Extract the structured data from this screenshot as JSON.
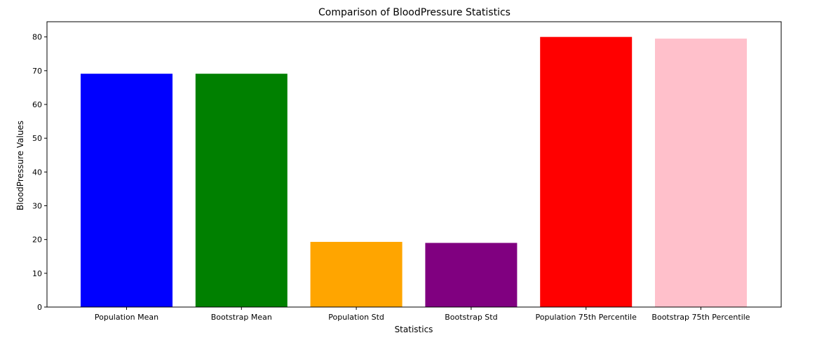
{
  "chart_data": {
    "type": "bar",
    "title": "Comparison of BloodPressure Statistics",
    "xlabel": "Statistics",
    "ylabel": "BloodPressure Values",
    "categories": [
      "Population Mean",
      "Bootstrap Mean",
      "Population Std",
      "Bootstrap Std",
      "Population 75th Percentile",
      "Bootstrap 75th Percentile"
    ],
    "values": [
      69.1,
      69.1,
      19.3,
      19.0,
      80.0,
      79.5
    ],
    "colors": [
      "#0000ff",
      "#008000",
      "#ffa500",
      "#800080",
      "#ff0000",
      "#ffc0cb"
    ],
    "ylim": [
      0,
      84.5
    ],
    "yticks": [
      0,
      10,
      20,
      30,
      40,
      50,
      60,
      70,
      80
    ],
    "grid": false
  }
}
